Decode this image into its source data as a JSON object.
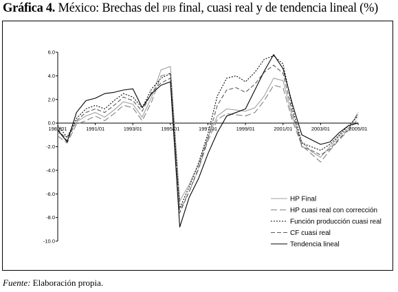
{
  "header": {
    "label": "Gráfica 4.",
    "title_pre": "México: Brechas del",
    "title_pib": "PIB",
    "title_post": "final, cuasi real y de tendencia lineal (%)"
  },
  "footer": {
    "source_label": "Fuente:",
    "source_text": "Elaboración propia."
  },
  "chart_data": {
    "type": "line",
    "title": "",
    "xlabel": "",
    "ylabel": "",
    "x": [
      "1989/01",
      "1989/03",
      "1990/01",
      "1990/03",
      "1991/01",
      "1991/03",
      "1992/01",
      "1992/03",
      "1993/01",
      "1993/03",
      "1994/01",
      "1994/03",
      "1995/01",
      "1995/03",
      "1996/01",
      "1996/03",
      "1997/01",
      "1997/03",
      "1998/01",
      "1998/03",
      "1999/01",
      "1999/03",
      "2000/01",
      "2000/03",
      "2001/01",
      "2001/03",
      "2002/01",
      "2002/03",
      "2003/01",
      "2003/03",
      "2004/01",
      "2004/03",
      "2005/01"
    ],
    "x_ticks": [
      "1989/01",
      "1991/01",
      "1993/01",
      "1995/01",
      "1997/01",
      "1999/01",
      "2001/01",
      "2003/01",
      "2005/01"
    ],
    "y_ticks": [
      "6.0",
      "4.0",
      "2.0",
      "0.0",
      "-2.0",
      "-4.0",
      "-6.0",
      "-8.0",
      "-10.0"
    ],
    "ylim": [
      -10,
      6
    ],
    "grid": false,
    "legend_position": "bottom-right",
    "series": [
      {
        "name": "HP Final",
        "color": "#a0a0a0",
        "dash": "",
        "values": [
          -0.8,
          -1.2,
          0.1,
          0.6,
          0.9,
          0.5,
          1.1,
          1.8,
          1.6,
          0.5,
          2.2,
          4.5,
          4.8,
          -6.6,
          -5.2,
          -3.5,
          -1.2,
          0.6,
          1.2,
          1.1,
          1.0,
          1.3,
          2.3,
          3.8,
          3.6,
          0.5,
          -1.6,
          -2.4,
          -2.9,
          -2.0,
          -1.1,
          -0.4,
          0.8
        ]
      },
      {
        "name": "HP cuasi real con corrección",
        "color": "#808080",
        "dash": "9 4",
        "values": [
          -1.1,
          -1.7,
          -0.1,
          0.2,
          0.6,
          0.2,
          0.8,
          1.5,
          1.3,
          0.2,
          1.8,
          4.0,
          4.2,
          -7.4,
          -5.8,
          -3.9,
          -1.5,
          0.3,
          0.8,
          0.7,
          0.6,
          0.9,
          1.9,
          3.2,
          3.0,
          0.2,
          -1.9,
          -2.6,
          -3.3,
          -2.3,
          -1.4,
          -0.6,
          0.4
        ]
      },
      {
        "name": "Función producción cuasi real",
        "color": "#000000",
        "dash": "2 2",
        "values": [
          -0.2,
          -1.2,
          0.4,
          1.2,
          1.5,
          1.2,
          1.9,
          2.5,
          2.2,
          1.3,
          2.9,
          3.8,
          4.2,
          -7.2,
          -5.4,
          -3.4,
          -0.9,
          2.3,
          3.8,
          4.0,
          3.5,
          4.3,
          5.4,
          5.7,
          5.0,
          1.3,
          -1.7,
          -2.0,
          -2.3,
          -1.8,
          -1.0,
          -0.2,
          0.6
        ]
      },
      {
        "name": "CF cuasi real",
        "color": "#5a5a5a",
        "dash": "6 3",
        "values": [
          -0.5,
          -1.5,
          0.2,
          0.9,
          1.2,
          0.9,
          1.5,
          2.2,
          1.9,
          1.0,
          2.6,
          3.4,
          3.8,
          -7.6,
          -5.8,
          -3.8,
          -1.3,
          1.5,
          2.8,
          3.0,
          2.6,
          3.3,
          4.3,
          4.9,
          4.2,
          0.9,
          -2.0,
          -2.3,
          -2.7,
          -2.2,
          -1.3,
          -0.5,
          0.9
        ]
      },
      {
        "name": "Tendencia lineal",
        "color": "#000000",
        "dash": "",
        "values": [
          -0.6,
          -1.6,
          0.9,
          1.9,
          2.1,
          2.5,
          2.6,
          2.8,
          2.9,
          1.3,
          2.5,
          3.2,
          3.5,
          -8.8,
          -6.3,
          -4.7,
          -2.6,
          -0.8,
          0.6,
          0.9,
          1.2,
          2.8,
          4.4,
          5.8,
          4.6,
          1.6,
          -1.0,
          -1.4,
          -1.8,
          -1.6,
          -0.8,
          -0.2,
          0.0
        ]
      }
    ]
  }
}
